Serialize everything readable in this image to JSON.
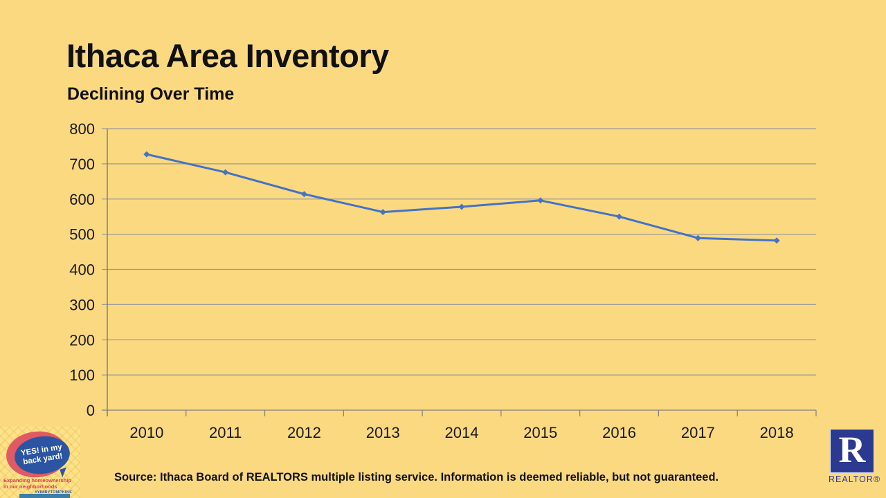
{
  "slide": {
    "title": "Ithaca Area Inventory",
    "subtitle": "Declining Over Time",
    "source": "Source: Ithaca Board of REALTORS multiple listing service. Information is deemed reliable, but not guaranteed."
  },
  "chart_data": {
    "type": "line",
    "title": "Ithaca Area Inventory",
    "subtitle": "Declining Over Time",
    "categories": [
      "2010",
      "2011",
      "2012",
      "2013",
      "2014",
      "2015",
      "2016",
      "2017",
      "2018"
    ],
    "series": [
      {
        "name": "Inventory",
        "values": [
          727,
          676,
          614,
          563,
          578,
          596,
          550,
          489,
          482
        ]
      }
    ],
    "ylim": [
      0,
      800
    ],
    "yticks": [
      0,
      100,
      200,
      300,
      400,
      500,
      600,
      700,
      800
    ],
    "xlabel": "",
    "ylabel": "",
    "grid": true,
    "legend": "none",
    "marker": "diamond",
    "line_color": "#4472C4"
  },
  "yimby_logo": {
    "bubble_line1": "YES! in my",
    "bubble_line2": "back yard!",
    "tagline": "Expanding homeownership in our neighborhoods",
    "hashtag": "#YIMBYTOMPKINS"
  },
  "realtor_logo": {
    "letter": "R",
    "label": "REALTOR®"
  },
  "colors": {
    "background": "#FBD981",
    "line": "#4472C4",
    "gridline": "#999999",
    "axis": "#7F7F7F",
    "text": "#1A1A1A",
    "yimby_red": "#E05A63",
    "yimby_blue": "#2B55A2",
    "realtor_blue": "#2B3990"
  }
}
